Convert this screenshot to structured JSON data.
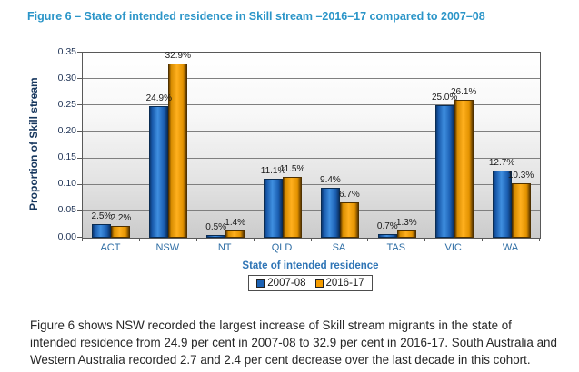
{
  "title": "Figure 6 – State of intended residence in Skill stream –2016–17 compared to 2007–08",
  "caption": "Figure 6 shows NSW recorded the largest increase of Skill stream migrants in the state of intended residence from 24.9 per cent in 2007-08 to 32.9 per cent in 2016-17.  South Australia and Western Australia recorded 2.7 and 2.4 per cent decrease over the last decade in this cohort.",
  "colors": {
    "title_blue": "#2b95c8",
    "series_2007_08": "#1b62b5",
    "series_2016_17": "#f59c00",
    "axis_label_blue": "#2e74b5",
    "ylabel_navy": "#17375e"
  },
  "chart_data": {
    "type": "bar",
    "title": "",
    "categories": [
      "ACT",
      "NSW",
      "NT",
      "QLD",
      "SA",
      "TAS",
      "VIC",
      "WA"
    ],
    "series": [
      {
        "name": "2007-08",
        "color": "#1b62b5",
        "values": [
          0.025,
          0.249,
          0.005,
          0.111,
          0.094,
          0.007,
          0.25,
          0.127
        ],
        "labels": [
          "2.5%",
          "24.9%",
          "0.5%",
          "11.1%",
          "9.4%",
          "0.7%",
          "25.0%",
          "12.7%"
        ]
      },
      {
        "name": "2016-17",
        "color": "#f59c00",
        "values": [
          0.022,
          0.329,
          0.014,
          0.115,
          0.067,
          0.013,
          0.261,
          0.103
        ],
        "labels": [
          "2.2%",
          "32.9%",
          "1.4%",
          "11.5%",
          "6.7%",
          "1.3%",
          "26.1%",
          "10.3%"
        ]
      }
    ],
    "xlabel": "State of intended residence",
    "ylabel": "Proportion of Skill stream",
    "ylim": [
      0,
      0.35
    ],
    "ytick_step": 0.05,
    "yticks": [
      "0.00",
      "0.05",
      "0.10",
      "0.15",
      "0.20",
      "0.25",
      "0.30",
      "0.35"
    ],
    "grid": true,
    "legend_position": "bottom"
  }
}
